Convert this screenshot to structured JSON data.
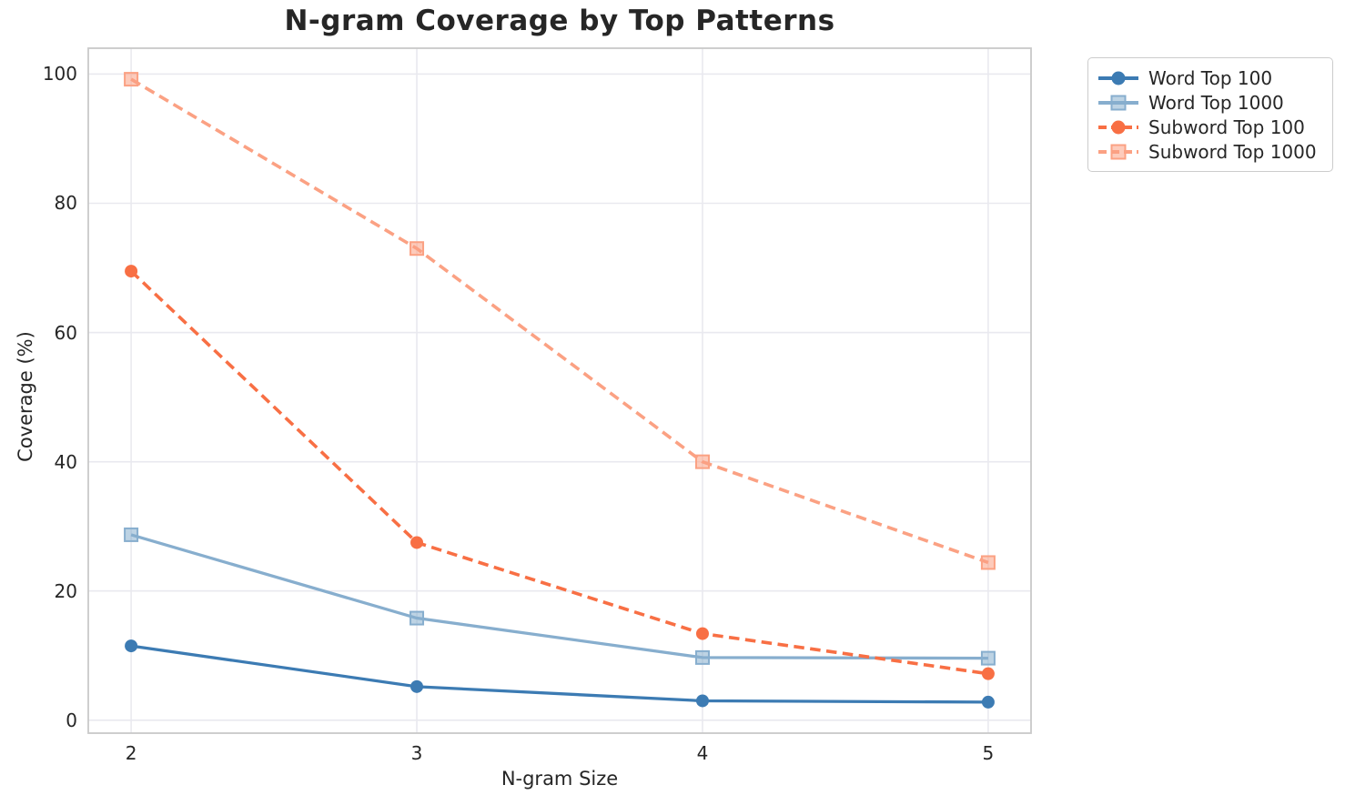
{
  "chart_data": {
    "type": "line",
    "title": "N-gram Coverage by Top Patterns",
    "xlabel": "N-gram Size",
    "ylabel": "Coverage (%)",
    "x": [
      2,
      3,
      4,
      5
    ],
    "xtick_labels": [
      "2",
      "3",
      "4",
      "5"
    ],
    "ytick_values": [
      0,
      20,
      40,
      60,
      80,
      100
    ],
    "ytick_labels": [
      "0",
      "20",
      "40",
      "60",
      "80",
      "100"
    ],
    "xlim": [
      1.85,
      5.15
    ],
    "ylim": [
      -2,
      104
    ],
    "grid": true,
    "legend_position": "outside-top-right",
    "series": [
      {
        "name": "Word Top 100",
        "values": [
          11.5,
          5.2,
          3.0,
          2.8
        ],
        "color": "#3C7BB3",
        "marker": "circle",
        "line_style": "solid"
      },
      {
        "name": "Word Top 1000",
        "values": [
          28.7,
          15.8,
          9.7,
          9.6
        ],
        "color": "#87AECE",
        "marker": "square",
        "line_style": "solid"
      },
      {
        "name": "Subword Top 100",
        "values": [
          69.5,
          27.5,
          13.4,
          7.2
        ],
        "color": "#F86F44",
        "marker": "circle",
        "line_style": "dashed"
      },
      {
        "name": "Subword Top 1000",
        "values": [
          99.2,
          73.0,
          40.0,
          24.4
        ],
        "color": "#FBA183",
        "marker": "square",
        "line_style": "dashed"
      }
    ],
    "colors": {
      "grid": "#E9E9EF",
      "spine": "#C9C9C9",
      "text": "#262626",
      "background": "#FFFFFF"
    }
  }
}
